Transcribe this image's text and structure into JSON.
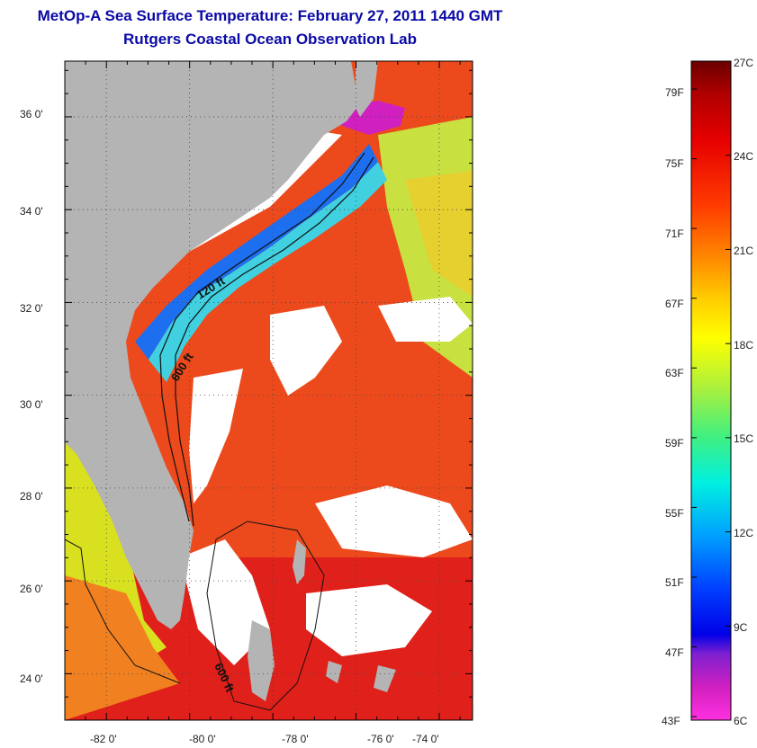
{
  "header": {
    "title": "MetOp-A Sea Surface Temperature:  February 27, 2011 1440 GMT",
    "subtitle": "Rutgers Coastal Ocean Observation Lab"
  },
  "map": {
    "lat_labels": [
      "36 0'",
      "34 0'",
      "32 0'",
      "30 0'",
      "28 0'",
      "26 0'",
      "24 0'"
    ],
    "lon_labels": [
      "-82 0'",
      "-80 0'",
      "-78 0'",
      "-76 0'",
      "-74 0'"
    ],
    "lat_range": [
      23,
      37.2
    ],
    "lon_range": [
      -83,
      -73.2
    ],
    "contour_labels": [
      "120 ft",
      "600 ft",
      "600 ft"
    ],
    "colors": {
      "land": "#b4b4b4",
      "cloud": "#ffffff",
      "gulf_stream": "#e8401a",
      "shelf_cold": "#1e6ef0",
      "shelf_mid": "#7ed03a"
    }
  },
  "colorbar": {
    "celsius_labels": [
      "27C",
      "24C",
      "21C",
      "18C",
      "15C",
      "12C",
      "9C",
      "6C"
    ],
    "fahrenheit_labels": [
      "79F",
      "75F",
      "71F",
      "67F",
      "63F",
      "59F",
      "55F",
      "51F",
      "47F",
      "43F"
    ],
    "range_c": [
      6,
      27
    ]
  }
}
